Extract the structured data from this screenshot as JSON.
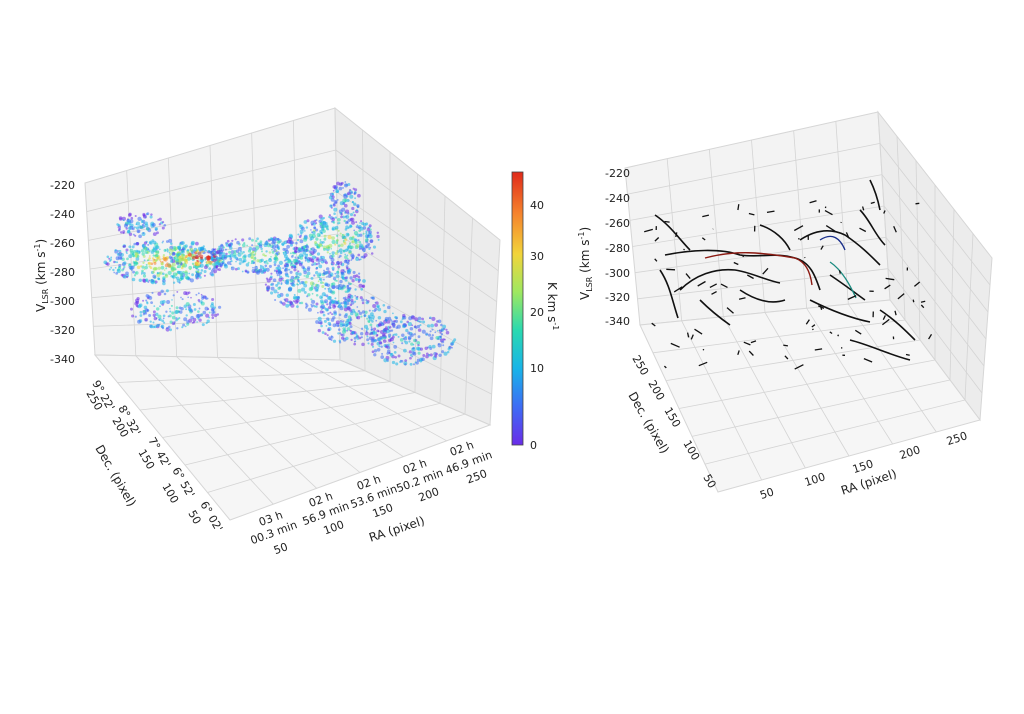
{
  "chart_data": [
    {
      "type": "scatter",
      "panel": "left",
      "zlabel_main": "V",
      "zlabel_sub": "LSR",
      "zlabel_unit": " (km s",
      "zlabel_exp": "-1",
      "zlabel_close": ")",
      "z_ticks": [
        "-220",
        "-240",
        "-260",
        "-280",
        "-300",
        "-320",
        "-340"
      ],
      "xlabel": "RA (pixel)",
      "x_pixel_ticks": [
        "50",
        "100",
        "150",
        "200",
        "250"
      ],
      "x_wcs_ticks": [
        {
          "h": "03 h",
          "m": "00.3 min"
        },
        {
          "h": "02 h",
          "m": "56.9 min"
        },
        {
          "h": "02 h",
          "m": "53.6 min"
        },
        {
          "h": "02 h",
          "m": "50.2 min"
        },
        {
          "h": "02 h",
          "m": "46.9 min"
        }
      ],
      "ylabel": "Dec. (pixel)",
      "y_pixel_ticks": [
        "50",
        "100",
        "150",
        "200",
        "250"
      ],
      "y_wcs_ticks": [
        "6° 02'",
        "6° 52'",
        "7° 42'",
        "8° 32'",
        "9° 22'"
      ],
      "colorbar": {
        "label": "K km s",
        "label_exp": "-1",
        "ticks": [
          "0",
          "10",
          "20",
          "30",
          "40"
        ],
        "range": [
          0,
          45
        ],
        "colors": [
          "#6a2ce8",
          "#3d6cf5",
          "#18b4e8",
          "#2ad9b0",
          "#9ee860",
          "#f2d43a",
          "#f5822d",
          "#e02a1a"
        ]
      }
    },
    {
      "type": "line",
      "panel": "right",
      "zlabel_main": "V",
      "zlabel_sub": "LSR",
      "zlabel_unit": " (km s",
      "zlabel_exp": "-1",
      "zlabel_close": ")",
      "z_ticks": [
        "-220",
        "-240",
        "-260",
        "-280",
        "-300",
        "-320",
        "-340"
      ],
      "xlabel": "RA (pixel)",
      "x_ticks": [
        "50",
        "100",
        "150",
        "200",
        "250"
      ],
      "ylabel": "Dec. (pixel)",
      "y_ticks": [
        "50",
        "100",
        "150",
        "200",
        "250"
      ]
    }
  ]
}
